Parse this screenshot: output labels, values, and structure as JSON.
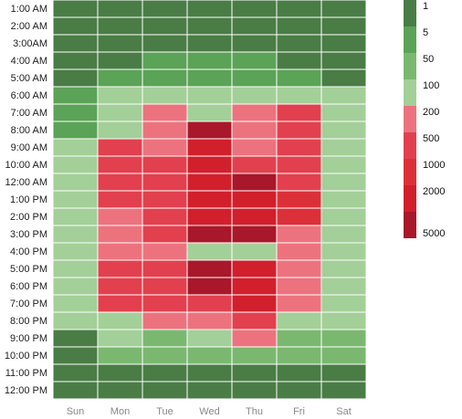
{
  "chart_data": {
    "type": "heatmap",
    "rows": [
      "1:00 AM",
      "2:00 AM",
      "3:00AM",
      "4:00 AM",
      "5:00 AM",
      "6:00 AM",
      "7:00 AM",
      "8:00 AM",
      "9:00 AM",
      "10:00 AM",
      "12:00 AM",
      "1:00 PM",
      "2:00 PM",
      "3:00 PM",
      "4:00 PM",
      "5:00 PM",
      "6:00 PM",
      "7:00 PM",
      "8:00 PM",
      "9:00 PM",
      "10:00 PM",
      "11:00 PM",
      "12:00 PM"
    ],
    "columns": [
      "Sun",
      "Mon",
      "Tue",
      "Wed",
      "Thu",
      "Fri",
      "Sat"
    ],
    "legend": {
      "thresholds": [
        "1",
        "5",
        "50",
        "100",
        "200",
        "500",
        "1000",
        "2000",
        "5000"
      ],
      "colors": [
        "#4a7c45",
        "#5ba356",
        "#7ab870",
        "#a3cf98",
        "#ec737e",
        "#e2404e",
        "#dc3039",
        "#d11f2c",
        "#a8172a"
      ]
    },
    "values": [
      [
        0,
        0,
        0,
        0,
        0,
        0,
        0
      ],
      [
        0,
        0,
        0,
        0,
        0,
        0,
        0
      ],
      [
        0,
        0,
        0,
        0,
        0,
        0,
        0
      ],
      [
        0,
        0,
        1,
        1,
        1,
        0,
        0
      ],
      [
        0,
        1,
        1,
        1,
        1,
        1,
        0
      ],
      [
        1,
        3,
        3,
        3,
        3,
        3,
        3
      ],
      [
        1,
        3,
        4,
        3,
        4,
        5,
        3
      ],
      [
        1,
        3,
        4,
        8,
        4,
        5,
        3
      ],
      [
        3,
        5,
        4,
        7,
        4,
        5,
        3
      ],
      [
        3,
        5,
        5,
        7,
        5,
        5,
        3
      ],
      [
        3,
        5,
        5,
        7,
        8,
        5,
        3
      ],
      [
        3,
        5,
        5,
        7,
        7,
        6,
        3
      ],
      [
        3,
        4,
        5,
        7,
        7,
        6,
        3
      ],
      [
        3,
        4,
        5,
        8,
        8,
        4,
        3
      ],
      [
        3,
        4,
        4,
        3,
        3,
        4,
        3
      ],
      [
        3,
        5,
        5,
        8,
        7,
        4,
        3
      ],
      [
        3,
        5,
        5,
        8,
        7,
        4,
        3
      ],
      [
        3,
        5,
        5,
        5,
        7,
        4,
        3
      ],
      [
        3,
        3,
        4,
        4,
        5,
        3,
        3
      ],
      [
        0,
        3,
        2,
        3,
        4,
        2,
        2
      ],
      [
        0,
        2,
        2,
        2,
        2,
        2,
        2
      ],
      [
        0,
        0,
        0,
        0,
        0,
        0,
        0
      ],
      [
        0,
        0,
        0,
        0,
        0,
        0,
        0
      ]
    ]
  }
}
